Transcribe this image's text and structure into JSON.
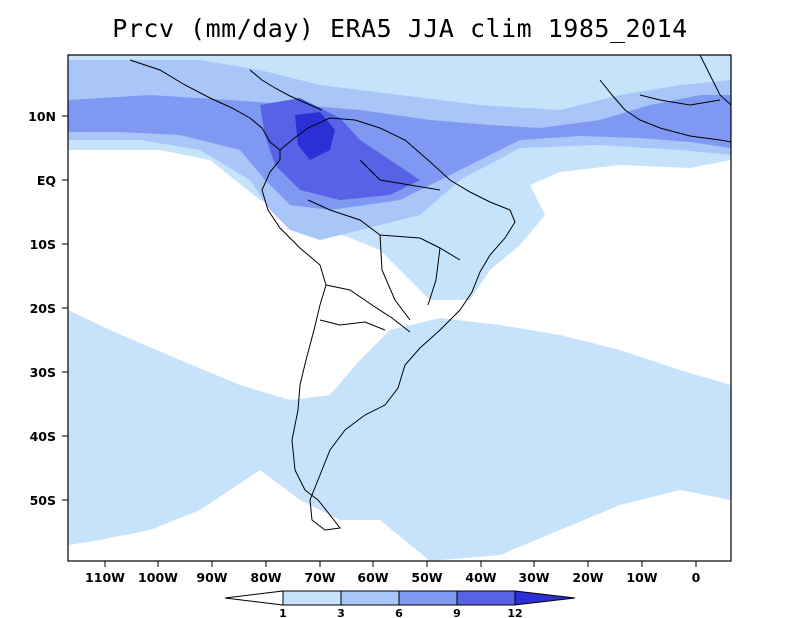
{
  "title": "Prcv (mm/day) ERA5 JJA clim 1985_2014",
  "colors": {
    "background": "#ffffff",
    "level_0_1": "#ffffff",
    "level_1_3": "#c7e3fb",
    "level_3_6": "#a9c6f8",
    "level_6_9": "#7f98f1",
    "level_9_12": "#5762e6",
    "level_12_plus": "#2d2fd6",
    "outline": "#000000"
  },
  "lat_labels": [
    "10N",
    "EQ",
    "10S",
    "20S",
    "30S",
    "40S",
    "50S"
  ],
  "lon_labels": [
    "110W",
    "100W",
    "90W",
    "80W",
    "70W",
    "60W",
    "50W",
    "40W",
    "30W",
    "20W",
    "10W",
    "0"
  ],
  "colorbar": {
    "labels": [
      "1",
      "3",
      "6",
      "9",
      "12"
    ]
  }
}
